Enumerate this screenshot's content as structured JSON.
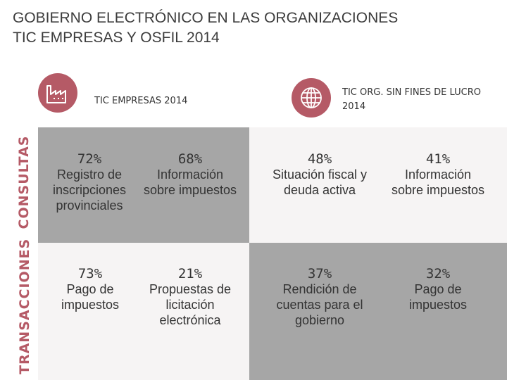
{
  "title": {
    "line1": "GOBIERNO ELECTRÓNICO EN LAS ORGANIZACIONES",
    "line2": "TIC EMPRESAS Y OSFIL 2014"
  },
  "headers": {
    "empresas": "TIC EMPRESAS 2014",
    "osfil": "TIC ORG. SIN FINES DE LUCRO\n2014"
  },
  "rows": {
    "consultas": "CONSULTAS",
    "transacciones": "TRANSACCIONES"
  },
  "consultas": {
    "empresas": [
      {
        "pct": "72%",
        "desc": "Registro de\ninscripciones\nprovinciales"
      },
      {
        "pct": "68%",
        "desc": "Información\nsobre impuestos"
      }
    ],
    "osfil": [
      {
        "pct": "48%",
        "desc": "Situación fiscal y\ndeuda activa"
      },
      {
        "pct": "41%",
        "desc": "Información\nsobre impuestos"
      }
    ]
  },
  "transacciones": {
    "empresas": [
      {
        "pct": "73%",
        "desc": "Pago de\nimpuestos"
      },
      {
        "pct": "21%",
        "desc": "Propuestas de\nlicitación\nelectrónica"
      }
    ],
    "osfil": [
      {
        "pct": "37%",
        "desc": "Rendición de\ncuentas para el\ngobierno"
      },
      {
        "pct": "32%",
        "desc": "Pago de\nimpuestos"
      }
    ]
  },
  "colors": {
    "accent": "#b55a66",
    "gray": "#a6a6a6",
    "light": "#f6f4f4"
  }
}
